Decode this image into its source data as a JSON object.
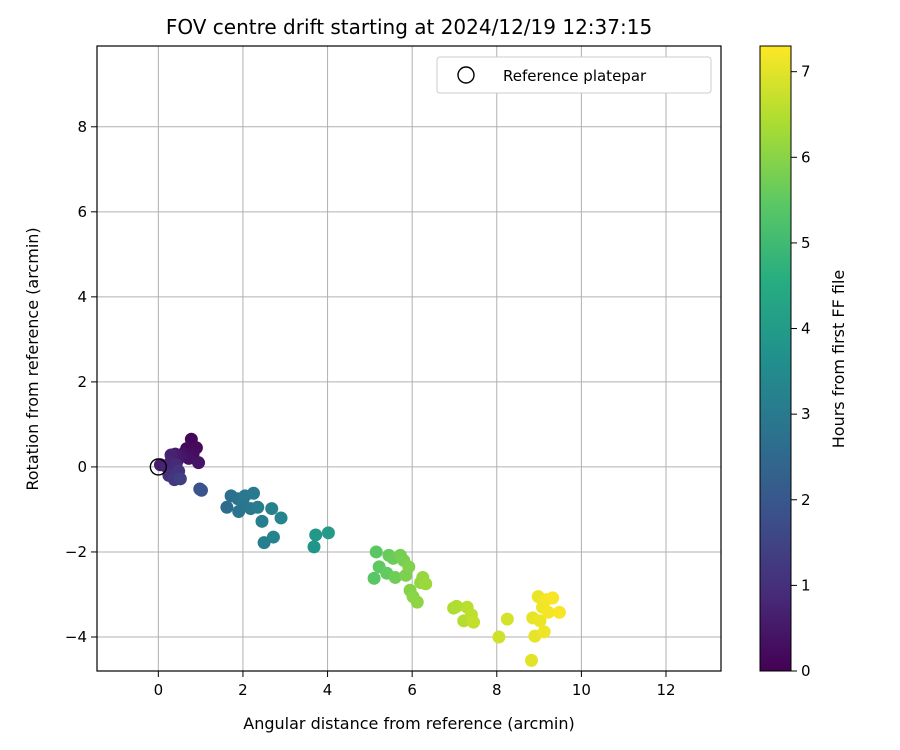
{
  "chart_data": {
    "type": "scatter",
    "title": "FOV centre drift starting at 2024/12/19 12:37:15",
    "xlabel": "Angular distance from reference (arcmin)",
    "ylabel": "Rotation from reference (arcmin)",
    "xlim": [
      -1.45,
      13.3
    ],
    "ylim": [
      -4.8,
      9.9
    ],
    "xticks": [
      0,
      2,
      4,
      6,
      8,
      10,
      12
    ],
    "yticks": [
      -4,
      -2,
      0,
      2,
      4,
      6,
      8
    ],
    "grid": true,
    "legend": {
      "placement": "upper-right",
      "entries": [
        "Reference platepar"
      ]
    },
    "reference_point": {
      "name": "Reference platepar",
      "x": 0,
      "y": 0,
      "marker": "hollow-circle"
    },
    "colorbar": {
      "label": "Hours from first FF file",
      "colormap": "viridis",
      "range": [
        0,
        7.3
      ],
      "ticks": [
        0,
        1,
        2,
        3,
        4,
        5,
        6,
        7
      ]
    },
    "series": [
      {
        "points": [
          [
            0.78,
            0.65
          ],
          [
            0.67,
            0.43
          ],
          [
            0.9,
            0.45
          ],
          [
            0.82,
            0.3
          ],
          [
            0.6,
            0.32
          ],
          [
            0.72,
            0.2
          ],
          [
            0.95,
            0.1
          ],
          [
            0.52,
            0.25
          ],
          [
            0.45,
            0.15
          ],
          [
            0.4,
            0.3
          ],
          [
            0.05,
            0.05
          ],
          [
            0.3,
            0.28
          ],
          [
            0.2,
            0.0
          ],
          [
            0.28,
            0.1
          ],
          [
            0.35,
            -0.05
          ],
          [
            0.42,
            0.05
          ],
          [
            0.25,
            -0.2
          ],
          [
            0.48,
            -0.1
          ],
          [
            0.38,
            -0.3
          ],
          [
            0.52,
            -0.28
          ],
          [
            0.98,
            -0.52
          ],
          [
            1.02,
            -0.55
          ],
          [
            1.62,
            -0.95
          ],
          [
            1.72,
            -0.68
          ],
          [
            1.88,
            -0.75
          ],
          [
            1.9,
            -1.05
          ],
          [
            2.0,
            -0.85
          ],
          [
            2.05,
            -0.68
          ],
          [
            2.18,
            -0.98
          ],
          [
            2.25,
            -0.62
          ],
          [
            2.35,
            -0.95
          ],
          [
            2.45,
            -1.28
          ],
          [
            2.5,
            -1.78
          ],
          [
            2.68,
            -0.98
          ],
          [
            2.72,
            -1.65
          ],
          [
            2.9,
            -1.2
          ],
          [
            3.68,
            -1.88
          ],
          [
            3.72,
            -1.6
          ],
          [
            4.02,
            -1.55
          ],
          [
            5.1,
            -2.62
          ],
          [
            5.15,
            -2.0
          ],
          [
            5.22,
            -2.35
          ],
          [
            5.4,
            -2.5
          ],
          [
            5.45,
            -2.08
          ],
          [
            5.55,
            -2.15
          ],
          [
            5.6,
            -2.6
          ],
          [
            5.72,
            -2.08
          ],
          [
            5.8,
            -2.2
          ],
          [
            5.85,
            -2.55
          ],
          [
            5.92,
            -2.35
          ],
          [
            5.95,
            -2.9
          ],
          [
            6.02,
            -3.05
          ],
          [
            6.12,
            -3.18
          ],
          [
            6.2,
            -2.72
          ],
          [
            6.25,
            -2.6
          ],
          [
            6.32,
            -2.75
          ],
          [
            6.98,
            -3.32
          ],
          [
            7.05,
            -3.28
          ],
          [
            7.22,
            -3.62
          ],
          [
            7.3,
            -3.3
          ],
          [
            7.4,
            -3.48
          ],
          [
            7.45,
            -3.65
          ],
          [
            8.05,
            -4.0
          ],
          [
            8.25,
            -3.58
          ],
          [
            8.82,
            -4.55
          ],
          [
            8.85,
            -3.55
          ],
          [
            8.9,
            -3.98
          ],
          [
            8.98,
            -3.05
          ],
          [
            9.02,
            -3.62
          ],
          [
            9.08,
            -3.3
          ],
          [
            9.12,
            -3.88
          ],
          [
            9.18,
            -3.12
          ],
          [
            9.22,
            -3.42
          ],
          [
            9.32,
            -3.08
          ],
          [
            9.48,
            -3.42
          ]
        ],
        "hours": [
          0.1,
          0.15,
          0.2,
          0.25,
          0.3,
          0.35,
          0.4,
          0.45,
          0.5,
          0.55,
          0.6,
          0.7,
          0.75,
          0.8,
          0.85,
          0.9,
          1.0,
          1.1,
          1.2,
          1.35,
          1.8,
          1.95,
          2.6,
          2.7,
          2.75,
          2.8,
          2.85,
          2.9,
          2.95,
          3.0,
          3.05,
          3.1,
          3.15,
          3.2,
          3.25,
          3.3,
          3.8,
          3.9,
          4.0,
          5.4,
          5.45,
          5.5,
          5.55,
          5.6,
          5.65,
          5.7,
          5.75,
          5.8,
          5.85,
          5.9,
          5.95,
          6.0,
          6.05,
          6.1,
          6.15,
          6.2,
          6.4,
          6.45,
          6.5,
          6.55,
          6.6,
          6.65,
          6.8,
          6.85,
          7.0,
          7.05,
          7.05,
          7.1,
          7.1,
          7.15,
          7.15,
          7.2,
          7.2,
          7.25,
          7.25
        ]
      }
    ]
  }
}
